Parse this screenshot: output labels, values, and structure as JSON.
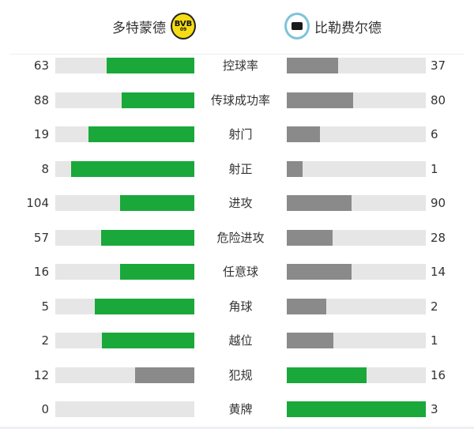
{
  "teams": {
    "home": {
      "name": "多特蒙德",
      "logo_text": "BVB 09"
    },
    "away": {
      "name": "比勒费尔德"
    }
  },
  "colors": {
    "leader": "#1aa83a",
    "trailer": "#8a8a8a",
    "track": "#e6e6e6"
  },
  "stats": [
    {
      "label": "控球率",
      "home": 63,
      "away": 37
    },
    {
      "label": "传球成功率",
      "home": 88,
      "away": 80
    },
    {
      "label": "射门",
      "home": 19,
      "away": 6
    },
    {
      "label": "射正",
      "home": 8,
      "away": 1
    },
    {
      "label": "进攻",
      "home": 104,
      "away": 90
    },
    {
      "label": "危险进攻",
      "home": 57,
      "away": 28
    },
    {
      "label": "任意球",
      "home": 16,
      "away": 14
    },
    {
      "label": "角球",
      "home": 5,
      "away": 2
    },
    {
      "label": "越位",
      "home": 2,
      "away": 1
    },
    {
      "label": "犯规",
      "home": 12,
      "away": 16
    },
    {
      "label": "黄牌",
      "home": 0,
      "away": 3
    }
  ]
}
